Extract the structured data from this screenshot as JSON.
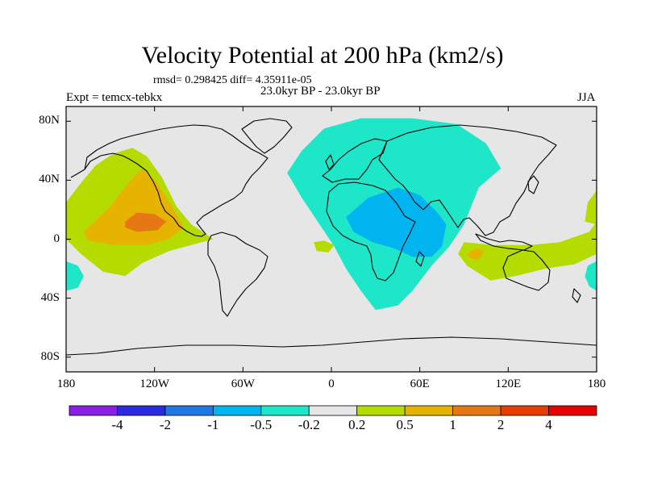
{
  "title": "Velocity Potential at 200 hPa (km2/s)",
  "stats_line": "rmsd= 0.298425  diff= 4.35911e-05",
  "period_line": "23.0kyr BP - 23.0kyr BP",
  "experiment_label": "Expt = temcx-tebkx",
  "season": "JJA",
  "map": {
    "projection": "cylindrical-equidistant",
    "lon_range": [
      -180,
      180
    ],
    "lat_range": [
      -90,
      90
    ],
    "y_ticks": [
      {
        "lat": 80,
        "label": "80N"
      },
      {
        "lat": 40,
        "label": "40N"
      },
      {
        "lat": 0,
        "label": "0"
      },
      {
        "lat": -40,
        "label": "40S"
      },
      {
        "lat": -80,
        "label": "80S"
      }
    ],
    "x_ticks": [
      {
        "lon": -180,
        "label": "180"
      },
      {
        "lon": -120,
        "label": "120W"
      },
      {
        "lon": -60,
        "label": "60W"
      },
      {
        "lon": 0,
        "label": "0"
      },
      {
        "lon": 60,
        "label": "60E"
      },
      {
        "lon": 120,
        "label": "120E"
      },
      {
        "lon": 180,
        "label": "180"
      }
    ],
    "background_color": "#e6e6e6",
    "coastline_color": "#000000"
  },
  "colorbar": {
    "colors": [
      "#8a1ee6",
      "#2a2ae0",
      "#1e78e6",
      "#00b4f0",
      "#1ee6c8",
      "#e6e6e6",
      "#b4dc00",
      "#e6b400",
      "#e67814",
      "#e63c00",
      "#e60000"
    ],
    "labels": [
      "-4",
      "-2",
      "-1",
      "-0.5",
      "-0.2",
      "0.2",
      "0.5",
      "1",
      "2",
      "4"
    ]
  },
  "regions": [
    {
      "name": "eastern-pacific-positive-0.2",
      "color": "#b4dc00",
      "outline": [
        [
          -180,
          25
        ],
        [
          -170,
          38
        ],
        [
          -160,
          50
        ],
        [
          -148,
          58
        ],
        [
          -135,
          62
        ],
        [
          -125,
          56
        ],
        [
          -115,
          42
        ],
        [
          -105,
          22
        ],
        [
          -95,
          10
        ],
        [
          -80,
          0
        ],
        [
          -88,
          -2
        ],
        [
          -110,
          -8
        ],
        [
          -128,
          -16
        ],
        [
          -140,
          -25
        ],
        [
          -155,
          -22
        ],
        [
          -170,
          -10
        ],
        [
          -180,
          0
        ]
      ]
    },
    {
      "name": "eastern-pacific-positive-0.5",
      "color": "#e6b400",
      "outline": [
        [
          -168,
          5
        ],
        [
          -150,
          22
        ],
        [
          -138,
          38
        ],
        [
          -128,
          48
        ],
        [
          -118,
          38
        ],
        [
          -108,
          22
        ],
        [
          -100,
          8
        ],
        [
          -110,
          0
        ],
        [
          -125,
          -4
        ],
        [
          -148,
          -4
        ],
        [
          -165,
          -1
        ]
      ]
    },
    {
      "name": "eastern-pacific-positive-1",
      "color": "#e67814",
      "outline": [
        [
          -140,
          12
        ],
        [
          -132,
          18
        ],
        [
          -120,
          17
        ],
        [
          -112,
          12
        ],
        [
          -118,
          6
        ],
        [
          -132,
          5
        ],
        [
          -140,
          8
        ]
      ]
    },
    {
      "name": "eurasia-africa-negative-0.2",
      "color": "#1ee6c8",
      "outline": [
        [
          -30,
          45
        ],
        [
          -20,
          60
        ],
        [
          -5,
          75
        ],
        [
          20,
          82
        ],
        [
          55,
          82
        ],
        [
          85,
          78
        ],
        [
          105,
          65
        ],
        [
          115,
          48
        ],
        [
          100,
          35
        ],
        [
          90,
          10
        ],
        [
          80,
          -5
        ],
        [
          68,
          -18
        ],
        [
          55,
          -35
        ],
        [
          45,
          -45
        ],
        [
          30,
          -48
        ],
        [
          20,
          -35
        ],
        [
          10,
          -20
        ],
        [
          2,
          -5
        ],
        [
          -8,
          10
        ],
        [
          -20,
          28
        ]
      ]
    },
    {
      "name": "africa-arabia-negative-0.5",
      "color": "#00b4f0",
      "outline": [
        [
          10,
          15
        ],
        [
          25,
          28
        ],
        [
          45,
          35
        ],
        [
          60,
          30
        ],
        [
          72,
          18
        ],
        [
          78,
          10
        ],
        [
          75,
          -5
        ],
        [
          68,
          -12
        ],
        [
          55,
          -12
        ],
        [
          42,
          -6
        ],
        [
          28,
          -2
        ],
        [
          15,
          5
        ]
      ]
    },
    {
      "name": "atlantic-small-positive-0.2",
      "color": "#b4dc00",
      "outline": [
        [
          -12,
          -2
        ],
        [
          -5,
          -1
        ],
        [
          2,
          -4
        ],
        [
          -2,
          -9
        ],
        [
          -10,
          -8
        ]
      ]
    },
    {
      "name": "west-pacific-positive-0.2",
      "color": "#b4dc00",
      "outline": [
        [
          90,
          -2
        ],
        [
          110,
          -4
        ],
        [
          135,
          -4
        ],
        [
          155,
          -2
        ],
        [
          175,
          5
        ],
        [
          180,
          12
        ],
        [
          180,
          -10
        ],
        [
          165,
          -17
        ],
        [
          145,
          -20
        ],
        [
          125,
          -25
        ],
        [
          108,
          -28
        ],
        [
          92,
          -18
        ],
        [
          86,
          -10
        ]
      ]
    },
    {
      "name": "west-pacific-positive-0.5",
      "color": "#e6b400",
      "outline": [
        [
          92,
          -10
        ],
        [
          98,
          -6
        ],
        [
          104,
          -8
        ],
        [
          100,
          -14
        ],
        [
          94,
          -13
        ]
      ]
    },
    {
      "name": "southwest-pacific-negative-0.2",
      "color": "#1ee6c8",
      "outline": [
        [
          -180,
          -15
        ],
        [
          -172,
          -18
        ],
        [
          -168,
          -25
        ],
        [
          -172,
          -33
        ],
        [
          -180,
          -35
        ]
      ]
    },
    {
      "name": "southeast-pacific-edge-negative-0.2",
      "color": "#1ee6c8",
      "outline": [
        [
          180,
          -15
        ],
        [
          174,
          -18
        ],
        [
          172,
          -25
        ],
        [
          175,
          -32
        ],
        [
          180,
          -35
        ]
      ]
    },
    {
      "name": "east-edge-positive-0.2",
      "color": "#b4dc00",
      "outline": [
        [
          180,
          33
        ],
        [
          174,
          25
        ],
        [
          172,
          12
        ],
        [
          180,
          10
        ]
      ]
    }
  ]
}
